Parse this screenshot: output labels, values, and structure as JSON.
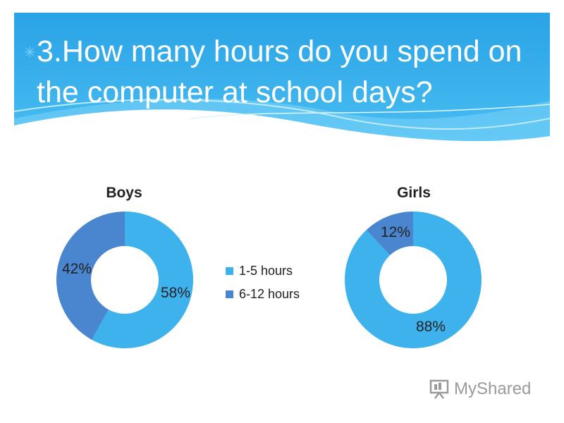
{
  "slide": {
    "bullet": "✳",
    "title": "3.How many hours do you spend on the computer at school days?"
  },
  "chart_data": [
    {
      "type": "pie",
      "title": "Boys",
      "categories": [
        "1-5 hours",
        "6-12 hours"
      ],
      "values": [
        58,
        42
      ],
      "labels": [
        "58%",
        "42%"
      ],
      "colors": [
        "#3db2ec",
        "#4a86cf"
      ]
    },
    {
      "type": "pie",
      "title": "Girls",
      "categories": [
        "1-5 hours",
        "6-12 hours"
      ],
      "values": [
        88,
        12
      ],
      "labels": [
        "88%",
        "12%"
      ],
      "colors": [
        "#3db2ec",
        "#4a86cf"
      ]
    }
  ],
  "legend": {
    "placement": "center",
    "items": [
      {
        "label": "1-5 hours",
        "color": "#3db2ec"
      },
      {
        "label": "6-12 hours",
        "color": "#4a86cf"
      }
    ]
  },
  "watermark": {
    "text": "MyShared",
    "icon": "presentation-board-icon"
  }
}
